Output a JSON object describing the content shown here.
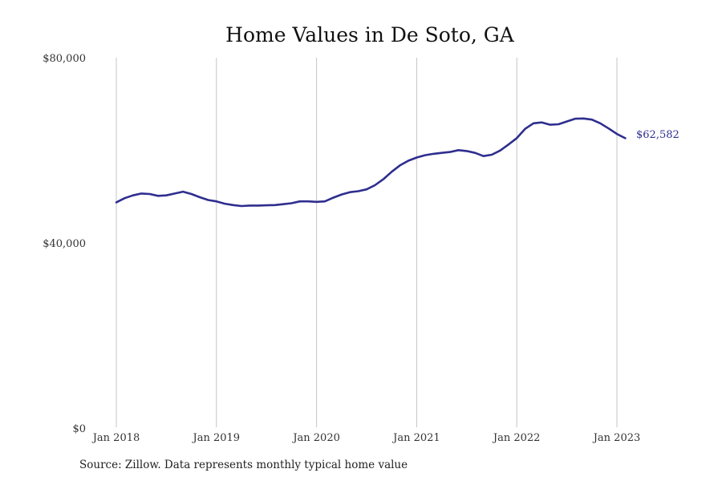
{
  "chart_data": {
    "type": "line",
    "title": "Home Values in De Soto, GA",
    "xlabel": "",
    "ylabel": "",
    "x_ticks": [
      "Jan 2018",
      "Jan 2019",
      "Jan 2020",
      "Jan 2021",
      "Jan 2022",
      "Jan 2023"
    ],
    "y_ticks": [
      "$80,000",
      "$40,000",
      "$0"
    ],
    "ylim": [
      0,
      80000
    ],
    "grid": "vertical",
    "series_color": "#2e2e8f",
    "end_label": "$62,582",
    "series": [
      {
        "x": [
          "2018-01",
          "2018-02",
          "2018-03",
          "2018-04",
          "2018-05",
          "2018-06",
          "2018-07",
          "2018-08",
          "2018-09",
          "2018-10",
          "2018-11",
          "2018-12",
          "2019-01",
          "2019-02",
          "2019-03",
          "2019-04",
          "2019-05",
          "2019-06",
          "2019-07",
          "2019-08",
          "2019-09",
          "2019-10",
          "2019-11",
          "2019-12",
          "2020-01",
          "2020-02",
          "2020-03",
          "2020-04",
          "2020-05",
          "2020-06",
          "2020-07",
          "2020-08",
          "2020-09",
          "2020-10",
          "2020-11",
          "2020-12",
          "2021-01",
          "2021-02",
          "2021-03",
          "2021-04",
          "2021-05",
          "2021-06",
          "2021-07",
          "2021-08",
          "2021-09",
          "2021-10",
          "2021-11",
          "2021-12",
          "2022-01",
          "2022-02",
          "2022-03",
          "2022-04",
          "2022-05",
          "2022-06",
          "2022-07",
          "2022-08",
          "2022-09",
          "2022-10",
          "2022-11",
          "2022-12",
          "2023-01",
          "2023-02"
        ],
        "values": [
          48700,
          49600,
          50200,
          50600,
          50500,
          50100,
          50200,
          50600,
          51000,
          50500,
          49800,
          49200,
          48900,
          48400,
          48100,
          47900,
          48000,
          48000,
          48050,
          48100,
          48300,
          48500,
          48900,
          48900,
          48800,
          48900,
          49700,
          50400,
          50900,
          51100,
          51500,
          52400,
          53700,
          55300,
          56700,
          57700,
          58400,
          58900,
          59200,
          59400,
          59600,
          60000,
          59800,
          59400,
          58700,
          59000,
          59900,
          61200,
          62600,
          64600,
          65800,
          66000,
          65500,
          65600,
          66200,
          66800,
          66850,
          66600,
          65800,
          64700,
          63500,
          62582
        ]
      }
    ]
  },
  "source_text": "Source: Zillow. Data represents monthly typical home value"
}
